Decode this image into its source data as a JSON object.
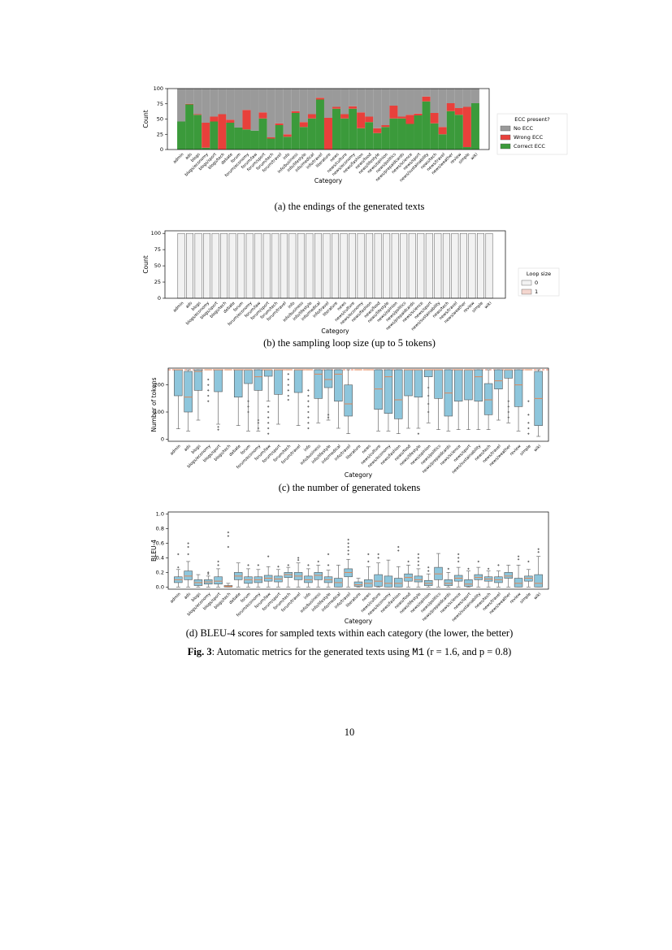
{
  "chart_data": [
    {
      "type": "bar",
      "stacked": true,
      "ylabel": "Count",
      "xlabel": "Category",
      "ylim": [
        0,
        100
      ],
      "yticks": [
        0,
        25,
        50,
        75,
        100
      ],
      "categories": [
        "admin",
        "ads",
        "blogs",
        "blogs/economy",
        "blogs/sport",
        "blogs/tech",
        "debate",
        "forum",
        "forum/economy",
        "forum/law",
        "forum/sport",
        "forum/tech",
        "forum/travel",
        "info",
        "info/business",
        "info/lifestyle",
        "info/medical",
        "info/travel",
        "literature",
        "news",
        "news/culture",
        "news/economy",
        "news/fashion",
        "news/food",
        "news/lifestyle",
        "news/opinion",
        "news/politics",
        "news/prepaidcards",
        "news/science",
        "news/sport",
        "news/sustainability",
        "news/tech",
        "news/travel",
        "news/weather",
        "review",
        "simple",
        "wiki"
      ],
      "legend_title": "ECC present?",
      "series": [
        {
          "name": "No ECC",
          "color": "#9a9a9a",
          "values": [
            54,
            25,
            42,
            56,
            46,
            42,
            51,
            64,
            35,
            69,
            39,
            80,
            57,
            75,
            37,
            55,
            42,
            15,
            48,
            30,
            42,
            29,
            39,
            46,
            65,
            60,
            28,
            46,
            43,
            41,
            13,
            40,
            63,
            24,
            32,
            30,
            24
          ]
        },
        {
          "name": "Wrong ECC",
          "color": "#e8403b",
          "values": [
            0,
            1,
            1,
            41,
            8,
            58,
            5,
            0,
            32,
            0,
            10,
            2,
            3,
            4,
            3,
            8,
            7,
            3,
            52,
            3,
            7,
            4,
            26,
            9,
            8,
            3,
            21,
            3,
            15,
            3,
            8,
            17,
            12,
            13,
            11,
            66,
            0
          ]
        },
        {
          "name": "Correct ECC",
          "color": "#3b9a3b",
          "values": [
            46,
            74,
            57,
            3,
            46,
            0,
            44,
            36,
            33,
            31,
            51,
            18,
            40,
            21,
            60,
            37,
            51,
            82,
            0,
            67,
            51,
            67,
            35,
            45,
            27,
            37,
            51,
            51,
            42,
            56,
            79,
            43,
            25,
            63,
            57,
            4,
            76
          ]
        }
      ],
      "caption": "(a) the endings of the generated texts"
    },
    {
      "type": "bar",
      "stacked": true,
      "ylabel": "Count",
      "xlabel": "Category",
      "ylim": [
        0,
        104
      ],
      "yticks": [
        0,
        25,
        50,
        75,
        100
      ],
      "categories": [
        "admin",
        "ads",
        "blogs",
        "blogs/economy",
        "blogs/sport",
        "blogs/tech",
        "debate",
        "forum",
        "forum/economy",
        "forum/law",
        "forum/sport",
        "forum/tech",
        "forum/travel",
        "info",
        "info/business",
        "info/lifestyle",
        "info/medical",
        "info/travel",
        "literature",
        "news",
        "news/culture",
        "news/economy",
        "news/fashion",
        "news/food",
        "news/lifestyle",
        "news/opinion",
        "news/politics",
        "news/prepaidcards",
        "news/science",
        "news/sport",
        "news/sustainability",
        "news/tech",
        "news/travel",
        "news/weather",
        "review",
        "simple",
        "wiki"
      ],
      "legend_title": "Loop size",
      "series": [
        {
          "name": "0",
          "color": "#f2f2f2",
          "values": [
            100,
            100,
            100,
            100,
            100,
            100,
            100,
            100,
            100,
            100,
            100,
            100,
            100,
            100,
            100,
            100,
            100,
            100,
            100,
            100,
            100,
            100,
            100,
            100,
            100,
            100,
            100,
            100,
            100,
            100,
            100,
            100,
            100,
            100,
            100,
            100,
            100
          ]
        },
        {
          "name": "1",
          "color": "#f4d6cf",
          "values": [
            0,
            0,
            0,
            0,
            0,
            0,
            0,
            0,
            0,
            0,
            0,
            0,
            0,
            0,
            0,
            0,
            0,
            0,
            0,
            0,
            0,
            0,
            0,
            0,
            0,
            0,
            0,
            0,
            0,
            0,
            0,
            0,
            0,
            0,
            0,
            0,
            0
          ]
        }
      ],
      "caption": "(b) the sampling loop size (up to 5 tokens)"
    },
    {
      "type": "box",
      "ylabel": "Number of tokens",
      "xlabel": "Category",
      "ylim": [
        -8,
        262
      ],
      "yticks": [
        0,
        100,
        200
      ],
      "color": "#8ec6dc",
      "median_color": "#e8804a",
      "reference_line": 256,
      "categories": [
        "admin",
        "ads",
        "blogs",
        "blogs/economy",
        "blogs/sport",
        "blogs/tech",
        "debate",
        "forum",
        "forum/economy",
        "forum/law",
        "forum/sport",
        "forum/tech",
        "forum/travel",
        "info",
        "info/business",
        "info/lifestyle",
        "info/medical",
        "info/travel",
        "literature",
        "news",
        "news/culture",
        "news/economy",
        "news/fashion",
        "news/food",
        "news/lifestyle",
        "news/opinion",
        "news/politics",
        "news/prepaidcards",
        "news/science",
        "news/sport",
        "news/sustainability",
        "news/tech",
        "news/travel",
        "news/weather",
        "review",
        "simple",
        "wiki"
      ],
      "whislo": [
        38,
        30,
        70,
        256,
        55,
        256,
        50,
        30,
        30,
        140,
        55,
        256,
        50,
        256,
        60,
        70,
        40,
        20,
        256,
        256,
        30,
        30,
        20,
        40,
        40,
        60,
        35,
        30,
        35,
        35,
        35,
        35,
        70,
        60,
        30,
        256,
        10
      ],
      "q1": [
        160,
        100,
        180,
        256,
        175,
        256,
        155,
        205,
        180,
        232,
        165,
        256,
        172,
        256,
        150,
        190,
        140,
        85,
        256,
        256,
        110,
        95,
        75,
        160,
        155,
        230,
        150,
        85,
        140,
        145,
        140,
        90,
        185,
        225,
        120,
        256,
        50
      ],
      "median": [
        256,
        155,
        250,
        256,
        256,
        256,
        256,
        256,
        230,
        256,
        256,
        256,
        256,
        256,
        240,
        220,
        240,
        130,
        256,
        256,
        185,
        230,
        145,
        256,
        256,
        256,
        256,
        170,
        256,
        256,
        230,
        145,
        215,
        256,
        200,
        256,
        150
      ],
      "q3": [
        256,
        250,
        256,
        256,
        256,
        256,
        256,
        256,
        256,
        256,
        256,
        256,
        256,
        256,
        256,
        256,
        256,
        200,
        256,
        256,
        256,
        256,
        256,
        256,
        256,
        256,
        256,
        256,
        256,
        256,
        256,
        205,
        256,
        256,
        256,
        256,
        250
      ],
      "whishi": [
        256,
        256,
        256,
        256,
        256,
        256,
        256,
        256,
        256,
        256,
        256,
        256,
        256,
        256,
        256,
        256,
        256,
        256,
        256,
        256,
        256,
        256,
        256,
        256,
        256,
        256,
        256,
        256,
        256,
        256,
        256,
        256,
        256,
        256,
        256,
        256,
        256
      ],
      "fliers": [
        [],
        [],
        [],
        [
          140,
          160,
          180,
          200,
          220
        ],
        [
          35,
          45
        ],
        [],
        [],
        [
          100,
          120,
          140
        ],
        [
          40,
          60,
          70
        ],
        [
          20,
          40,
          60,
          80,
          100,
          120
        ],
        [],
        [
          145,
          160,
          180,
          200,
          220,
          240
        ],
        [],
        [
          40,
          60,
          80,
          100,
          120,
          140,
          160,
          180
        ],
        [],
        [
          80,
          90
        ],
        [],
        [],
        [],
        [],
        [],
        [],
        [],
        [],
        [
          20
        ],
        [
          100,
          130,
          160,
          190
        ],
        [],
        [],
        [],
        [],
        [],
        [],
        [],
        [
          80,
          100,
          120,
          140
        ],
        [],
        [
          20,
          40,
          60,
          90,
          140
        ],
        []
      ],
      "caption": "(c) the number of generated tokens"
    },
    {
      "type": "box",
      "ylabel": "BLEU-4",
      "xlabel": "Category",
      "ylim": [
        -0.03,
        1.03
      ],
      "yticks": [
        {
          "value": 0,
          "label": "0.0"
        },
        {
          "value": 0.2,
          "label": "0.2"
        },
        {
          "value": 0.4,
          "label": "0.4"
        },
        {
          "value": 0.6,
          "label": "0.6"
        },
        {
          "value": 0.8,
          "label": "0.8"
        },
        {
          "value": 1,
          "label": "1.0"
        }
      ],
      "color": "#8ec6dc",
      "median_color": "#e8804a",
      "categories": [
        "admin",
        "ads",
        "blogs",
        "blogs/economy",
        "blogs/sport",
        "blogs/tech",
        "debate",
        "forum",
        "forum/economy",
        "forum/law",
        "forum/sport",
        "forum/tech",
        "forum/travel",
        "info",
        "info/business",
        "info/lifestyle",
        "info/medical",
        "info/travel",
        "literature",
        "news",
        "news/culture",
        "news/economy",
        "news/fashion",
        "news/food",
        "news/lifestyle",
        "news/opinion",
        "news/politics",
        "news/prepaidcards",
        "news/science",
        "news/sport",
        "news/sustainability",
        "news/tech",
        "news/travel",
        "news/weather",
        "review",
        "simple",
        "wiki"
      ],
      "whislo": [
        0,
        0,
        0,
        0,
        0,
        0,
        0,
        0,
        0,
        0,
        0,
        0,
        0,
        0,
        0,
        0,
        0,
        0,
        0,
        0,
        0,
        0,
        0,
        0,
        0,
        0,
        0,
        0,
        0,
        0,
        0,
        0,
        0,
        0,
        0,
        0,
        0
      ],
      "q1": [
        0.06,
        0.1,
        0.02,
        0.04,
        0.04,
        0,
        0.1,
        0.05,
        0.06,
        0.08,
        0.07,
        0.13,
        0.1,
        0.06,
        0.1,
        0.06,
        0,
        0.14,
        0.01,
        0,
        0.01,
        0,
        0,
        0.08,
        0.07,
        0.02,
        0.1,
        0.02,
        0.08,
        0.01,
        0.1,
        0.08,
        0.06,
        0.12,
        0,
        0.08,
        0
      ],
      "median": [
        0.1,
        0.15,
        0.06,
        0.07,
        0.08,
        0.01,
        0.15,
        0.1,
        0.1,
        0.12,
        0.11,
        0.17,
        0.15,
        0.1,
        0.16,
        0.1,
        0.06,
        0.2,
        0.03,
        0.05,
        0.08,
        0.05,
        0.05,
        0.13,
        0.1,
        0.05,
        0.18,
        0.05,
        0.12,
        0.04,
        0.13,
        0.11,
        0.1,
        0.15,
        0.05,
        0.12,
        0.05
      ],
      "q3": [
        0.14,
        0.22,
        0.1,
        0.1,
        0.14,
        0.02,
        0.2,
        0.14,
        0.14,
        0.16,
        0.15,
        0.2,
        0.2,
        0.15,
        0.2,
        0.14,
        0.12,
        0.25,
        0.07,
        0.1,
        0.17,
        0.15,
        0.12,
        0.18,
        0.15,
        0.09,
        0.27,
        0.1,
        0.16,
        0.1,
        0.17,
        0.14,
        0.14,
        0.2,
        0.12,
        0.15,
        0.17
      ],
      "whishi": [
        0.24,
        0.35,
        0.17,
        0.15,
        0.25,
        0.05,
        0.33,
        0.25,
        0.24,
        0.28,
        0.24,
        0.27,
        0.33,
        0.25,
        0.3,
        0.23,
        0.3,
        0.38,
        0.12,
        0.28,
        0.33,
        0.37,
        0.28,
        0.3,
        0.25,
        0.18,
        0.46,
        0.2,
        0.27,
        0.22,
        0.27,
        0.22,
        0.22,
        0.3,
        0.3,
        0.24,
        0.42
      ],
      "fliers": [
        [
          0.27,
          0.45
        ],
        [
          0.45,
          0.55,
          0.6
        ],
        [],
        [
          0.18,
          0.2
        ],
        [
          0.3,
          0.35
        ],
        [
          0.55,
          0.7,
          0.75
        ],
        [],
        [
          0.3
        ],
        [
          0.3
        ],
        [
          0.42
        ],
        [
          0.28
        ],
        [
          0.3
        ],
        [
          0.37,
          0.4
        ],
        [
          0.3
        ],
        [
          0.35
        ],
        [
          0.3,
          0.45
        ],
        [],
        [
          0.45,
          0.5,
          0.55,
          0.6,
          0.65
        ],
        [],
        [
          0.35,
          0.45
        ],
        [
          0.4,
          0.45
        ],
        [],
        [
          0.5,
          0.55
        ],
        [
          0.35
        ],
        [
          0.3,
          0.35,
          0.4,
          0.45
        ],
        [
          0.22,
          0.27
        ],
        [],
        [
          0.25
        ],
        [
          0.35,
          0.4,
          0.45
        ],
        [
          0.25
        ],
        [
          0.35
        ],
        [
          0.25
        ],
        [
          0.3
        ],
        [],
        [
          0.38,
          0.42
        ],
        [
          0.35
        ],
        [
          0.48,
          0.52
        ]
      ],
      "caption": "(d) BLEU-4 scores for sampled texts within each category (the lower, the better)"
    }
  ],
  "figure_caption": {
    "label": "Fig. 3",
    "text": ": Automatic metrics for the generated texts using ",
    "model": "M1",
    "params": " (r = 1.6, and p = 0.8)"
  },
  "page_number": "10"
}
